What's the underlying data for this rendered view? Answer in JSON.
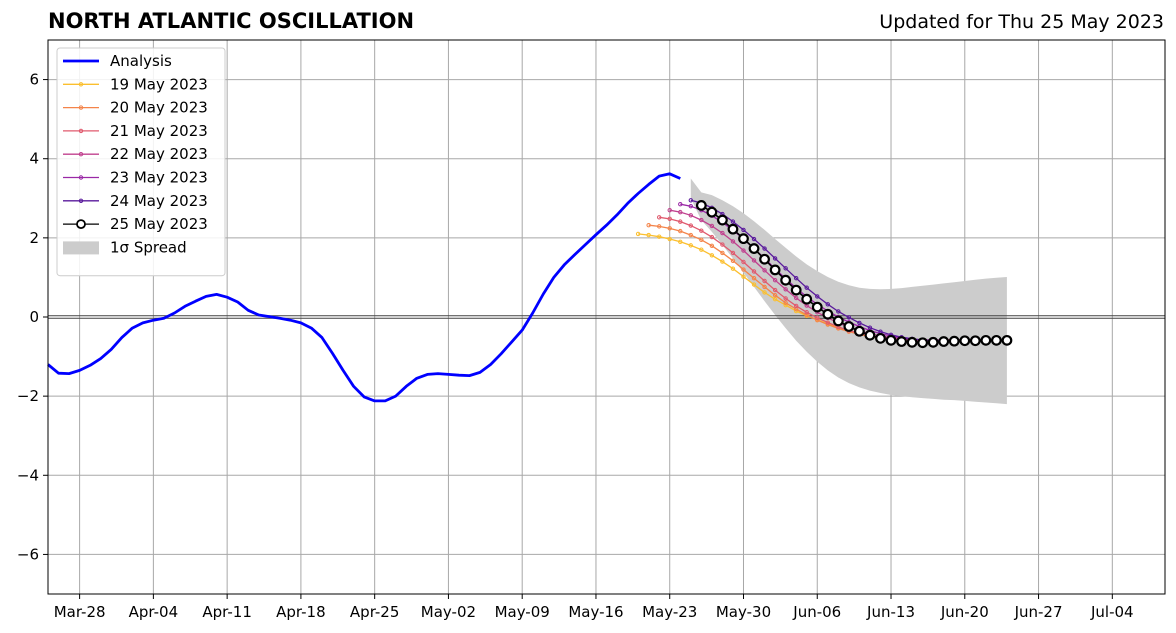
{
  "title": "NORTH ATLANTIC OSCILLATION",
  "subtitle": "Updated for Thu 25 May 2023",
  "chart_data": {
    "type": "line",
    "title": "NORTH ATLANTIC OSCILLATION",
    "xlabel": "",
    "ylabel": "",
    "ylim": [
      -7,
      7
    ],
    "xlim": [
      "2023-03-25",
      "2023-07-09"
    ],
    "y_ticks": [
      -6,
      -4,
      -2,
      0,
      2,
      4,
      6
    ],
    "y_tick_labels": [
      "−6",
      "−4",
      "−2",
      "0",
      "2",
      "4",
      "6"
    ],
    "x_ticks": [
      "2023-03-28",
      "2023-04-04",
      "2023-04-11",
      "2023-04-18",
      "2023-04-25",
      "2023-05-02",
      "2023-05-09",
      "2023-05-16",
      "2023-05-23",
      "2023-05-30",
      "2023-06-06",
      "2023-06-13",
      "2023-06-20",
      "2023-06-27",
      "2023-07-04"
    ],
    "x_tick_labels": [
      "Mar-28",
      "Apr-04",
      "Apr-11",
      "Apr-18",
      "Apr-25",
      "May-02",
      "May-09",
      "May-16",
      "May-23",
      "May-30",
      "Jun-06",
      "Jun-13",
      "Jun-20",
      "Jun-27",
      "Jul-04"
    ],
    "grid": true,
    "legend_position": "upper-left",
    "analysis": {
      "name": "Analysis",
      "color": "#0000ff",
      "x": [
        "2023-03-25",
        "2023-03-26",
        "2023-03-27",
        "2023-03-28",
        "2023-03-29",
        "2023-03-30",
        "2023-03-31",
        "2023-04-01",
        "2023-04-02",
        "2023-04-03",
        "2023-04-04",
        "2023-04-05",
        "2023-04-06",
        "2023-04-07",
        "2023-04-08",
        "2023-04-09",
        "2023-04-10",
        "2023-04-11",
        "2023-04-12",
        "2023-04-13",
        "2023-04-14",
        "2023-04-15",
        "2023-04-16",
        "2023-04-17",
        "2023-04-18",
        "2023-04-19",
        "2023-04-20",
        "2023-04-21",
        "2023-04-22",
        "2023-04-23",
        "2023-04-24",
        "2023-04-25",
        "2023-04-26",
        "2023-04-27",
        "2023-04-28",
        "2023-04-29",
        "2023-04-30",
        "2023-05-01",
        "2023-05-02",
        "2023-05-03",
        "2023-05-04",
        "2023-05-05",
        "2023-05-06",
        "2023-05-07",
        "2023-05-08",
        "2023-05-09",
        "2023-05-10",
        "2023-05-11",
        "2023-05-12",
        "2023-05-13",
        "2023-05-14",
        "2023-05-15",
        "2023-05-16",
        "2023-05-17",
        "2023-05-18",
        "2023-05-19",
        "2023-05-20",
        "2023-05-21",
        "2023-05-22",
        "2023-05-23",
        "2023-05-24",
        "2023-05-25"
      ],
      "y": [
        -1.2,
        -1.42,
        -1.43,
        -1.35,
        -1.22,
        -1.05,
        -0.82,
        -0.52,
        -0.28,
        -0.15,
        -0.08,
        -0.03,
        0.1,
        0.27,
        0.4,
        0.52,
        0.57,
        0.5,
        0.38,
        0.17,
        0.05,
        0.01,
        -0.03,
        -0.08,
        -0.15,
        -0.28,
        -0.52,
        -0.92,
        -1.35,
        -1.75,
        -2.02,
        -2.12,
        -2.12,
        -2.0,
        -1.75,
        -1.55,
        -1.45,
        -1.43,
        -1.45,
        -1.47,
        -1.48,
        -1.4,
        -1.2,
        -0.93,
        -0.63,
        -0.33,
        0.1,
        0.58,
        1.0,
        1.32,
        1.58,
        1.83,
        2.08,
        2.32,
        2.58,
        2.87,
        3.12,
        3.35,
        3.56,
        3.62,
        3.5,
        null
      ]
    },
    "forecasts": [
      {
        "name": "19 May 2023",
        "color": "#fbbf2e",
        "x": [
          "2023-05-20",
          "2023-05-21",
          "2023-05-22",
          "2023-05-23",
          "2023-05-24",
          "2023-05-25",
          "2023-05-26",
          "2023-05-27",
          "2023-05-28",
          "2023-05-29",
          "2023-05-30",
          "2023-05-31",
          "2023-06-01",
          "2023-06-02",
          "2023-06-03",
          "2023-06-04",
          "2023-06-05",
          "2023-06-06",
          "2023-06-07",
          "2023-06-08",
          "2023-06-09",
          "2023-06-10",
          "2023-06-11",
          "2023-06-12",
          "2023-06-13",
          "2023-06-14",
          "2023-06-15",
          "2023-06-16",
          "2023-06-17",
          "2023-06-18"
        ],
        "y": [
          2.1,
          2.07,
          2.03,
          1.97,
          1.9,
          1.81,
          1.7,
          1.56,
          1.4,
          1.22,
          1.02,
          0.82,
          0.62,
          0.45,
          0.3,
          0.15,
          0.03,
          -0.07,
          -0.17,
          -0.26,
          -0.34,
          -0.41,
          -0.47,
          -0.52,
          -0.55,
          -0.58,
          -0.6,
          -0.6,
          -0.59,
          -0.58
        ]
      },
      {
        "name": "20 May 2023",
        "color": "#f4844a",
        "x": [
          "2023-05-21",
          "2023-05-22",
          "2023-05-23",
          "2023-05-24",
          "2023-05-25",
          "2023-05-26",
          "2023-05-27",
          "2023-05-28",
          "2023-05-29",
          "2023-05-30",
          "2023-05-31",
          "2023-06-01",
          "2023-06-02",
          "2023-06-03",
          "2023-06-04",
          "2023-06-05",
          "2023-06-06",
          "2023-06-07",
          "2023-06-08",
          "2023-06-09",
          "2023-06-10",
          "2023-06-11",
          "2023-06-12",
          "2023-06-13",
          "2023-06-14",
          "2023-06-15",
          "2023-06-16",
          "2023-06-17",
          "2023-06-18",
          "2023-06-19"
        ],
        "y": [
          2.32,
          2.29,
          2.24,
          2.17,
          2.07,
          1.95,
          1.8,
          1.62,
          1.42,
          1.2,
          0.98,
          0.76,
          0.55,
          0.36,
          0.2,
          0.05,
          -0.08,
          -0.19,
          -0.29,
          -0.37,
          -0.44,
          -0.5,
          -0.54,
          -0.57,
          -0.59,
          -0.6,
          -0.6,
          -0.59,
          -0.58,
          -0.57
        ]
      },
      {
        "name": "21 May 2023",
        "color": "#e05a6e",
        "x": [
          "2023-05-22",
          "2023-05-23",
          "2023-05-24",
          "2023-05-25",
          "2023-05-26",
          "2023-05-27",
          "2023-05-28",
          "2023-05-29",
          "2023-05-30",
          "2023-05-31",
          "2023-06-01",
          "2023-06-02",
          "2023-06-03",
          "2023-06-04",
          "2023-06-05",
          "2023-06-06",
          "2023-06-07",
          "2023-06-08",
          "2023-06-09",
          "2023-06-10",
          "2023-06-11",
          "2023-06-12",
          "2023-06-13",
          "2023-06-14",
          "2023-06-15",
          "2023-06-16",
          "2023-06-17",
          "2023-06-18",
          "2023-06-19",
          "2023-06-20"
        ],
        "y": [
          2.52,
          2.48,
          2.41,
          2.31,
          2.18,
          2.02,
          1.83,
          1.62,
          1.39,
          1.15,
          0.91,
          0.68,
          0.47,
          0.28,
          0.12,
          -0.02,
          -0.14,
          -0.25,
          -0.34,
          -0.41,
          -0.47,
          -0.52,
          -0.55,
          -0.57,
          -0.58,
          -0.58,
          -0.58,
          -0.58,
          -0.57,
          -0.57
        ]
      },
      {
        "name": "22 May 2023",
        "color": "#c0408e",
        "x": [
          "2023-05-23",
          "2023-05-24",
          "2023-05-25",
          "2023-05-26",
          "2023-05-27",
          "2023-05-28",
          "2023-05-29",
          "2023-05-30",
          "2023-05-31",
          "2023-06-01",
          "2023-06-02",
          "2023-06-03",
          "2023-06-04",
          "2023-06-05",
          "2023-06-06",
          "2023-06-07",
          "2023-06-08",
          "2023-06-09",
          "2023-06-10",
          "2023-06-11",
          "2023-06-12",
          "2023-06-13",
          "2023-06-14",
          "2023-06-15",
          "2023-06-16",
          "2023-06-17",
          "2023-06-18",
          "2023-06-19",
          "2023-06-20",
          "2023-06-21"
        ],
        "y": [
          2.7,
          2.65,
          2.57,
          2.45,
          2.3,
          2.12,
          1.91,
          1.68,
          1.43,
          1.18,
          0.93,
          0.7,
          0.48,
          0.29,
          0.12,
          -0.02,
          -0.15,
          -0.26,
          -0.35,
          -0.42,
          -0.48,
          -0.52,
          -0.55,
          -0.57,
          -0.58,
          -0.58,
          -0.58,
          -0.58,
          -0.57,
          -0.57
        ]
      },
      {
        "name": "23 May 2023",
        "color": "#9a28a6",
        "x": [
          "2023-05-24",
          "2023-05-25",
          "2023-05-26",
          "2023-05-27",
          "2023-05-28",
          "2023-05-29",
          "2023-05-30",
          "2023-05-31",
          "2023-06-01",
          "2023-06-02",
          "2023-06-03",
          "2023-06-04",
          "2023-06-05",
          "2023-06-06",
          "2023-06-07",
          "2023-06-08",
          "2023-06-09",
          "2023-06-10",
          "2023-06-11",
          "2023-06-12",
          "2023-06-13",
          "2023-06-14",
          "2023-06-15",
          "2023-06-16",
          "2023-06-17",
          "2023-06-18",
          "2023-06-19",
          "2023-06-20",
          "2023-06-21",
          "2023-06-22"
        ],
        "y": [
          2.85,
          2.8,
          2.7,
          2.56,
          2.39,
          2.19,
          1.97,
          1.73,
          1.48,
          1.22,
          0.97,
          0.73,
          0.51,
          0.32,
          0.15,
          0.0,
          -0.13,
          -0.24,
          -0.34,
          -0.42,
          -0.48,
          -0.53,
          -0.56,
          -0.58,
          -0.59,
          -0.59,
          -0.59,
          -0.58,
          -0.58,
          -0.57
        ]
      },
      {
        "name": "24 May 2023",
        "color": "#5a1a9c",
        "x": [
          "2023-05-25",
          "2023-05-26",
          "2023-05-27",
          "2023-05-28",
          "2023-05-29",
          "2023-05-30",
          "2023-05-31",
          "2023-06-01",
          "2023-06-02",
          "2023-06-03",
          "2023-06-04",
          "2023-06-05",
          "2023-06-06",
          "2023-06-07",
          "2023-06-08",
          "2023-06-09",
          "2023-06-10",
          "2023-06-11",
          "2023-06-12",
          "2023-06-13",
          "2023-06-14",
          "2023-06-15",
          "2023-06-16",
          "2023-06-17",
          "2023-06-18",
          "2023-06-19",
          "2023-06-20",
          "2023-06-21",
          "2023-06-22",
          "2023-06-23"
        ],
        "y": [
          2.95,
          2.88,
          2.76,
          2.6,
          2.41,
          2.2,
          1.97,
          1.73,
          1.48,
          1.23,
          0.98,
          0.74,
          0.52,
          0.32,
          0.14,
          -0.01,
          -0.15,
          -0.27,
          -0.37,
          -0.45,
          -0.51,
          -0.55,
          -0.58,
          -0.59,
          -0.6,
          -0.6,
          -0.6,
          -0.59,
          -0.59,
          -0.58
        ]
      },
      {
        "name": "25 May 2023",
        "color": "#000000",
        "marker": "open-circle",
        "x": [
          "2023-05-26",
          "2023-05-27",
          "2023-05-28",
          "2023-05-29",
          "2023-05-30",
          "2023-05-31",
          "2023-06-01",
          "2023-06-02",
          "2023-06-03",
          "2023-06-04",
          "2023-06-05",
          "2023-06-06",
          "2023-06-07",
          "2023-06-08",
          "2023-06-09",
          "2023-06-10",
          "2023-06-11",
          "2023-06-12",
          "2023-06-13",
          "2023-06-14",
          "2023-06-15",
          "2023-06-16",
          "2023-06-17",
          "2023-06-18",
          "2023-06-19",
          "2023-06-20",
          "2023-06-21",
          "2023-06-22",
          "2023-06-23",
          "2023-06-24"
        ],
        "y": [
          2.82,
          2.65,
          2.45,
          2.22,
          1.98,
          1.73,
          1.46,
          1.19,
          0.93,
          0.68,
          0.45,
          0.25,
          0.07,
          -0.1,
          -0.24,
          -0.36,
          -0.46,
          -0.54,
          -0.59,
          -0.62,
          -0.64,
          -0.65,
          -0.64,
          -0.62,
          -0.61,
          -0.6,
          -0.6,
          -0.59,
          -0.59,
          -0.59
        ]
      }
    ],
    "spread": {
      "name": "1σ Spread",
      "color": "#cccccc",
      "x": [
        "2023-05-25",
        "2023-05-26",
        "2023-05-27",
        "2023-05-28",
        "2023-05-29",
        "2023-05-30",
        "2023-05-31",
        "2023-06-01",
        "2023-06-02",
        "2023-06-03",
        "2023-06-04",
        "2023-06-05",
        "2023-06-06",
        "2023-06-07",
        "2023-06-08",
        "2023-06-09",
        "2023-06-10",
        "2023-06-11",
        "2023-06-12",
        "2023-06-13",
        "2023-06-14",
        "2023-06-15",
        "2023-06-16",
        "2023-06-17",
        "2023-06-18",
        "2023-06-19",
        "2023-06-20",
        "2023-06-21",
        "2023-06-22",
        "2023-06-23",
        "2023-06-24"
      ],
      "upper": [
        3.5,
        3.15,
        3.08,
        2.95,
        2.8,
        2.62,
        2.42,
        2.2,
        1.97,
        1.75,
        1.53,
        1.33,
        1.16,
        1.01,
        0.89,
        0.8,
        0.74,
        0.71,
        0.7,
        0.71,
        0.73,
        0.76,
        0.79,
        0.82,
        0.85,
        0.88,
        0.91,
        0.94,
        0.97,
        0.99,
        1.01
      ],
      "lower": [
        3.0,
        2.45,
        2.15,
        1.82,
        1.48,
        1.12,
        0.76,
        0.4,
        0.05,
        -0.28,
        -0.6,
        -0.88,
        -1.13,
        -1.35,
        -1.53,
        -1.67,
        -1.78,
        -1.86,
        -1.92,
        -1.97,
        -2.0,
        -2.03,
        -2.05,
        -2.07,
        -2.09,
        -2.1,
        -2.12,
        -2.14,
        -2.16,
        -2.18,
        -2.2
      ]
    }
  }
}
